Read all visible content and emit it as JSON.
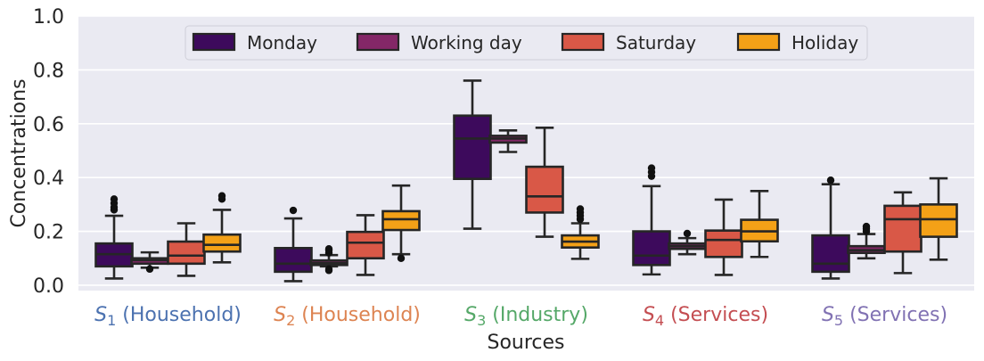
{
  "chart_data": {
    "type": "box",
    "xlabel": "Sources",
    "ylabel": "Concentrations",
    "ylim": [
      -0.02,
      1.0
    ],
    "yticks": [
      "0.0",
      "0.2",
      "0.4",
      "0.6",
      "0.8",
      "1.0"
    ],
    "grid": true,
    "legend_position": "top",
    "categories": [
      {
        "sym": "S",
        "sub": "1",
        "rest": " (Household)",
        "color": "#4c72b0"
      },
      {
        "sym": "S",
        "sub": "2",
        "rest": " (Household)",
        "color": "#dd8452"
      },
      {
        "sym": "S",
        "sub": "3",
        "rest": " (Industry)",
        "color": "#55a868"
      },
      {
        "sym": "S",
        "sub": "4",
        "rest": " (Services)",
        "color": "#c44e52"
      },
      {
        "sym": "S",
        "sub": "5",
        "rest": " (Services)",
        "color": "#8172b3"
      }
    ],
    "series": [
      {
        "name": "Monday",
        "color": "#3d0a5c",
        "boxes": [
          {
            "whislo": 0.025,
            "q1": 0.07,
            "med": 0.115,
            "q3": 0.155,
            "whishi": 0.258,
            "fliers": [
              0.28,
              0.29,
              0.305,
              0.32
            ]
          },
          {
            "whislo": 0.015,
            "q1": 0.05,
            "med": 0.08,
            "q3": 0.138,
            "whishi": 0.248,
            "fliers": [
              0.278
            ]
          },
          {
            "whislo": 0.21,
            "q1": 0.395,
            "med": 0.545,
            "q3": 0.63,
            "whishi": 0.76,
            "fliers": []
          },
          {
            "whislo": 0.04,
            "q1": 0.075,
            "med": 0.11,
            "q3": 0.2,
            "whishi": 0.368,
            "fliers": [
              0.405,
              0.42,
              0.435
            ]
          },
          {
            "whislo": 0.025,
            "q1": 0.05,
            "med": 0.08,
            "q3": 0.185,
            "whishi": 0.375,
            "fliers": [
              0.39
            ]
          }
        ]
      },
      {
        "name": "Working day",
        "color": "#842767",
        "boxes": [
          {
            "whislo": 0.065,
            "q1": 0.08,
            "med": 0.093,
            "q3": 0.1,
            "whishi": 0.122,
            "fliers": [
              0.06
            ]
          },
          {
            "whislo": 0.07,
            "q1": 0.075,
            "med": 0.082,
            "q3": 0.092,
            "whishi": 0.112,
            "fliers": [
              0.055,
              0.06,
              0.12,
              0.13,
              0.135
            ]
          },
          {
            "whislo": 0.495,
            "q1": 0.53,
            "med": 0.545,
            "q3": 0.555,
            "whishi": 0.575,
            "fliers": []
          },
          {
            "whislo": 0.115,
            "q1": 0.135,
            "med": 0.145,
            "q3": 0.155,
            "whishi": 0.175,
            "fliers": [
              0.192
            ]
          },
          {
            "whislo": 0.1,
            "q1": 0.12,
            "med": 0.13,
            "q3": 0.145,
            "whishi": 0.19,
            "fliers": [
              0.2,
              0.21,
              0.218
            ]
          }
        ]
      },
      {
        "name": "Saturday",
        "color": "#d95847",
        "boxes": [
          {
            "whislo": 0.035,
            "q1": 0.08,
            "med": 0.11,
            "q3": 0.162,
            "whishi": 0.23,
            "fliers": []
          },
          {
            "whislo": 0.038,
            "q1": 0.1,
            "med": 0.158,
            "q3": 0.198,
            "whishi": 0.26,
            "fliers": []
          },
          {
            "whislo": 0.18,
            "q1": 0.27,
            "med": 0.33,
            "q3": 0.44,
            "whishi": 0.585,
            "fliers": []
          },
          {
            "whislo": 0.038,
            "q1": 0.105,
            "med": 0.168,
            "q3": 0.203,
            "whishi": 0.318,
            "fliers": []
          },
          {
            "whislo": 0.045,
            "q1": 0.125,
            "med": 0.245,
            "q3": 0.295,
            "whishi": 0.345,
            "fliers": []
          }
        ]
      },
      {
        "name": "Holiday",
        "color": "#f4a117",
        "boxes": [
          {
            "whislo": 0.085,
            "q1": 0.125,
            "med": 0.15,
            "q3": 0.188,
            "whishi": 0.28,
            "fliers": [
              0.32,
              0.332
            ]
          },
          {
            "whislo": 0.115,
            "q1": 0.205,
            "med": 0.245,
            "q3": 0.275,
            "whishi": 0.37,
            "fliers": [
              0.1
            ]
          },
          {
            "whislo": 0.098,
            "q1": 0.14,
            "med": 0.162,
            "q3": 0.185,
            "whishi": 0.23,
            "fliers": [
              0.245,
              0.258,
              0.27,
              0.283
            ]
          },
          {
            "whislo": 0.105,
            "q1": 0.163,
            "med": 0.2,
            "q3": 0.243,
            "whishi": 0.35,
            "fliers": []
          },
          {
            "whislo": 0.095,
            "q1": 0.18,
            "med": 0.245,
            "q3": 0.3,
            "whishi": 0.397,
            "fliers": []
          }
        ]
      }
    ]
  }
}
